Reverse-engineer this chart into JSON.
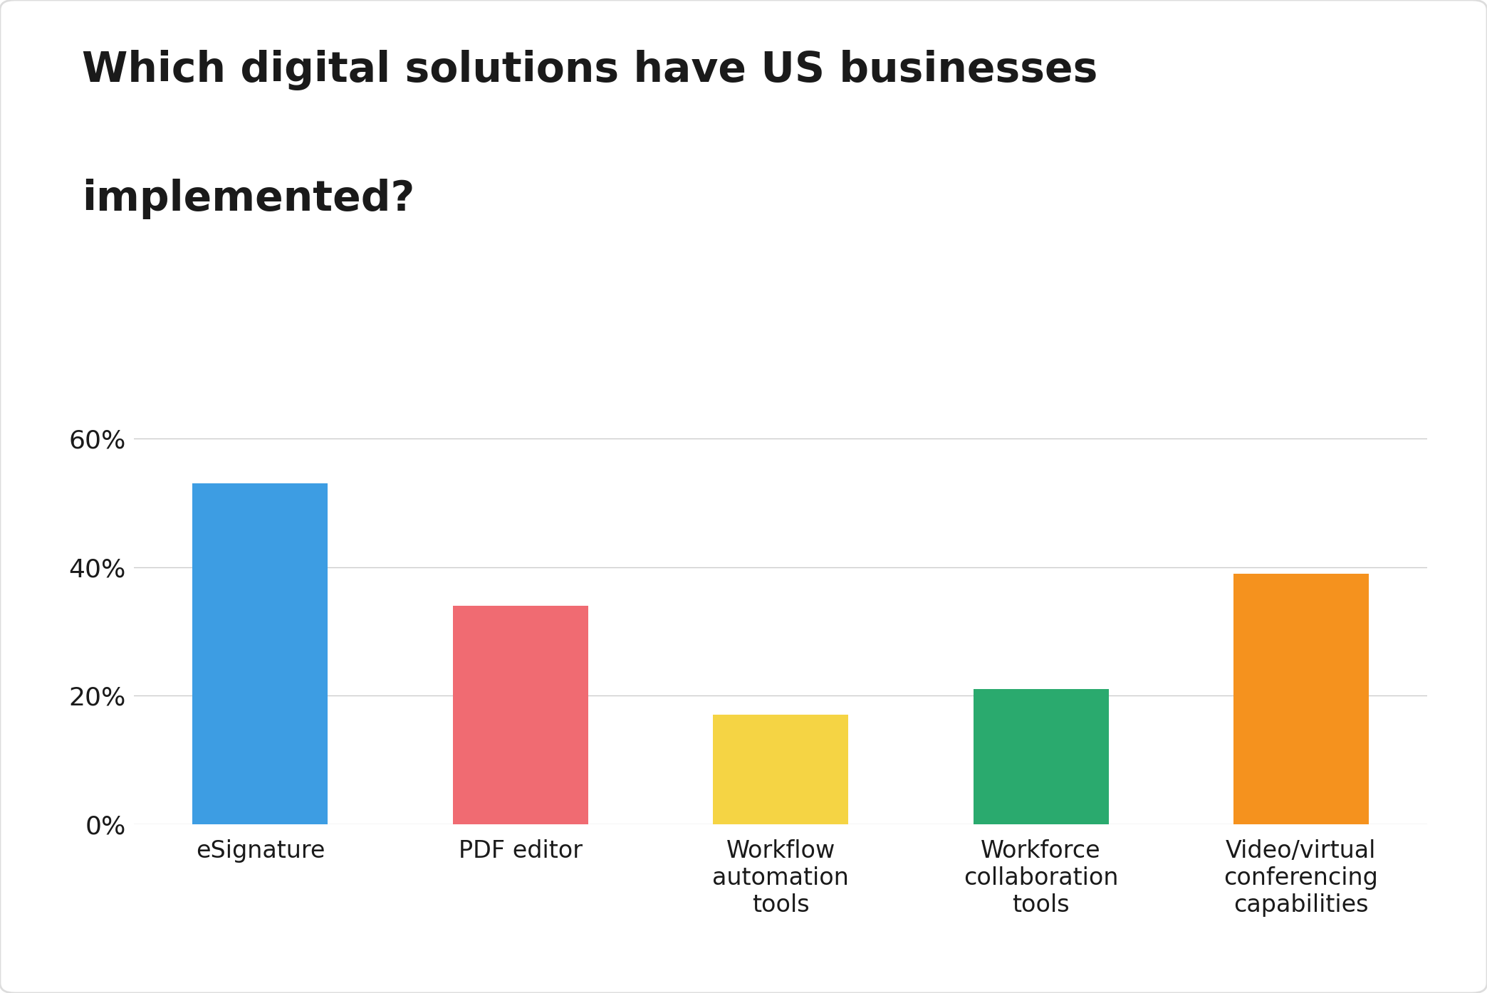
{
  "title_line1": "Which digital solutions have US businesses",
  "title_line2": "implemented?",
  "categories": [
    "eSignature",
    "PDF editor",
    "Workflow\nautomation\ntools",
    "Workforce\ncollaboration\ntools",
    "Video/virtual\nconferencing\ncapabilities"
  ],
  "values": [
    53,
    34,
    17,
    21,
    39
  ],
  "bar_colors": [
    "#3d9de3",
    "#f06b72",
    "#f5d444",
    "#2aaa6e",
    "#f5921e"
  ],
  "yticks": [
    0,
    20,
    40,
    60
  ],
  "ytick_labels": [
    "0%",
    "20%",
    "40%",
    "60%"
  ],
  "ylim": [
    0,
    68
  ],
  "background_color": "#ffffff",
  "title_fontsize": 42,
  "tick_fontsize": 26,
  "xlabel_fontsize": 24,
  "bar_width": 0.52,
  "grid_color": "#cccccc",
  "text_color": "#1a1a1a",
  "border_color": "#dddddd"
}
